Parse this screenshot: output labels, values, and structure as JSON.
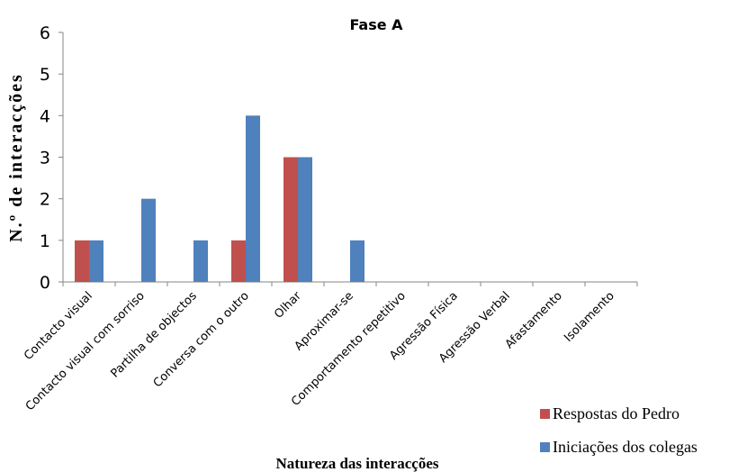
{
  "chart_data": {
    "type": "bar",
    "title": "Fase A",
    "x_label": "Natureza das interacções",
    "y_label": "N.º de interacções",
    "categories": [
      "Contacto visual",
      "Contacto visual com sorriso",
      "Partilha de objectos",
      "Conversa com o outro",
      "Olhar",
      "Aproximar-se",
      "Comportamento repetitivo",
      "Agressão Física",
      "Agressão Verbal",
      "Afastamento",
      "Isolamento"
    ],
    "series": [
      {
        "name": "Respostas do Pedro",
        "color": "#c0504d",
        "values": [
          1,
          0,
          0,
          1,
          3,
          0,
          0,
          0,
          0,
          0,
          0
        ]
      },
      {
        "name": "Iniciações dos colegas",
        "color": "#4f81bd",
        "values": [
          1,
          2,
          1,
          4,
          3,
          1,
          0,
          0,
          0,
          0,
          0
        ]
      }
    ],
    "ylim": [
      0,
      6
    ],
    "yticks": [
      0,
      1,
      2,
      3,
      4,
      5,
      6
    ],
    "grid": false,
    "legend": "bottom-right"
  }
}
